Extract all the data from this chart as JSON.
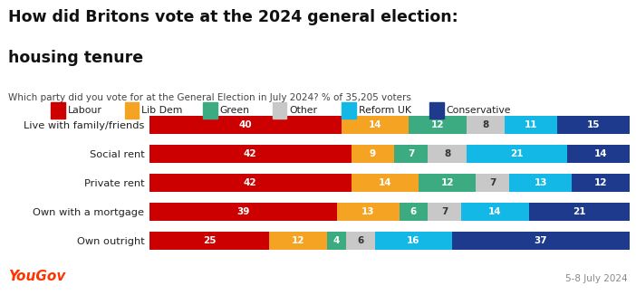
{
  "title_line1": "How did Britons vote at the 2024 general election:",
  "title_line2": "housing tenure",
  "subtitle": "Which party did you vote for at the General Election in July 2024? % of 35,205 voters",
  "categories": [
    "Live with family/friends",
    "Social rent",
    "Private rent",
    "Own with a mortgage",
    "Own outright"
  ],
  "parties": [
    "Labour",
    "Lib Dem",
    "Green",
    "Other",
    "Reform UK",
    "Conservative"
  ],
  "colors": [
    "#cc0000",
    "#f5a322",
    "#3dab82",
    "#c8c8c8",
    "#14b8e6",
    "#1e3a8c"
  ],
  "data": [
    [
      40,
      14,
      12,
      8,
      11,
      15
    ],
    [
      42,
      9,
      7,
      8,
      21,
      14
    ],
    [
      42,
      14,
      12,
      7,
      13,
      12
    ],
    [
      39,
      13,
      6,
      7,
      14,
      21
    ],
    [
      25,
      12,
      4,
      6,
      16,
      37
    ]
  ],
  "bar_height": 0.62,
  "background_color": "#ffffff",
  "text_color_white": "#ffffff",
  "text_color_dark": "#333333",
  "footer_left": "YouGov",
  "footer_right": "5-8 July 2024",
  "yougov_color": "#ff3300"
}
